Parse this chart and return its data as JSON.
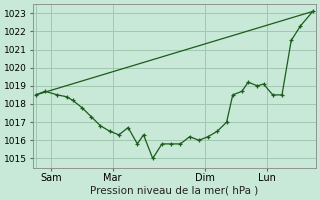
{
  "title": "Pression niveau de la mer( hPa )",
  "ylim": [
    1014.5,
    1023.5
  ],
  "yticks": [
    1015,
    1016,
    1017,
    1018,
    1019,
    1020,
    1021,
    1022,
    1023
  ],
  "bg_color": "#c8e8d8",
  "grid_color": "#a0c8b0",
  "line_color": "#1a5c1a",
  "xtick_labels": [
    "Sam",
    "Mar",
    "Dim",
    "Lun"
  ],
  "xtick_positions": [
    0.5,
    2.5,
    5.5,
    7.5
  ],
  "xlim": [
    -0.1,
    9.1
  ],
  "vline_positions": [
    0.0,
    0.5,
    2.5,
    5.5,
    7.5
  ],
  "line1_x": [
    0.0,
    0.3,
    0.7,
    1.0,
    1.2,
    1.5,
    1.8,
    2.1,
    2.4,
    2.7,
    3.0,
    3.3,
    3.5,
    3.8,
    4.1,
    4.4,
    4.7,
    5.0,
    5.3,
    5.6,
    5.9,
    6.2,
    6.4,
    6.7,
    6.9,
    7.2,
    7.4,
    7.7,
    8.0,
    8.3,
    8.6,
    9.0
  ],
  "line1_y": [
    1018.5,
    1018.7,
    1018.5,
    1018.4,
    1018.2,
    1017.8,
    1017.3,
    1016.8,
    1016.5,
    1016.3,
    1016.7,
    1015.8,
    1016.3,
    1015.0,
    1015.8,
    1015.8,
    1015.8,
    1016.2,
    1016.0,
    1016.2,
    1016.5,
    1017.0,
    1018.5,
    1018.7,
    1019.2,
    1019.0,
    1019.1,
    1018.5,
    1018.5,
    1021.5,
    1022.3,
    1023.1
  ],
  "line2_x": [
    0.0,
    9.0
  ],
  "line2_y": [
    1018.5,
    1023.1
  ]
}
